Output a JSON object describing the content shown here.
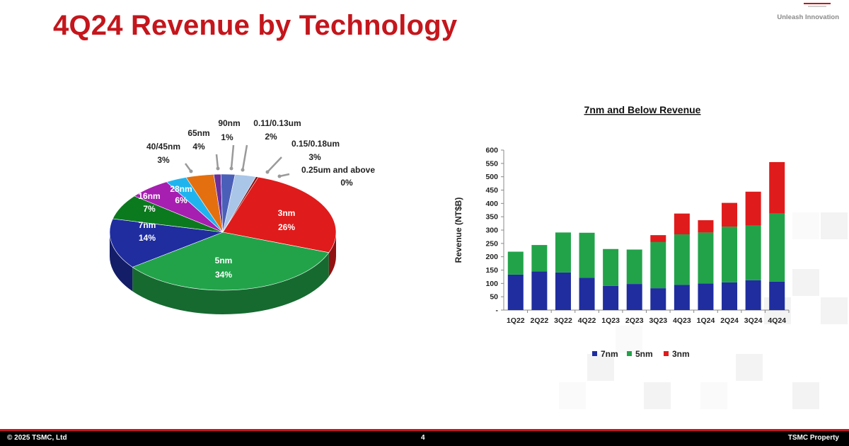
{
  "slide": {
    "title": "4Q24 Revenue by Technology",
    "tagline": "Unleash Innovation",
    "footer_left": "© 2025 TSMC, Ltd",
    "page_number": "4",
    "footer_right": "TSMC Property"
  },
  "colors": {
    "brand_red": "#c4161c",
    "c_7nm": "#1f2d9f",
    "c_5nm": "#22a34a",
    "c_3nm": "#e01b1b"
  },
  "chart_data": [
    {
      "type": "pie",
      "title": "",
      "slices": [
        {
          "label": "3nm",
          "value": 26,
          "value_label": "26%",
          "color": "#e01b1b"
        },
        {
          "label": "5nm",
          "value": 34,
          "value_label": "34%",
          "color": "#22a34a"
        },
        {
          "label": "7nm",
          "value": 14,
          "value_label": "14%",
          "color": "#1f2d9f"
        },
        {
          "label": "16nm",
          "value": 7,
          "value_label": "7%",
          "color": "#0b7a1e"
        },
        {
          "label": "28nm",
          "value": 6,
          "value_label": "6%",
          "color": "#a61fb0"
        },
        {
          "label": "40/45nm",
          "value": 3,
          "value_label": "3%",
          "color": "#20b4ef"
        },
        {
          "label": "65nm",
          "value": 4,
          "value_label": "4%",
          "color": "#e46f0e"
        },
        {
          "label": "90nm",
          "value": 1,
          "value_label": "1%",
          "color": "#6a2f9a"
        },
        {
          "label": "0.11/0.13um",
          "value": 2,
          "value_label": "2%",
          "color": "#4a5fb8"
        },
        {
          "label": "0.15/0.18um",
          "value": 3,
          "value_label": "3%",
          "color": "#a9c6e8"
        },
        {
          "label": "0.25um and above",
          "value": 0,
          "value_label": "0%",
          "color": "#8c1010"
        }
      ]
    },
    {
      "type": "bar",
      "stacked": true,
      "title": "7nm and Below Revenue",
      "ylabel": "Revenue (NT$B)",
      "xlabel": "",
      "ylim": [
        0,
        600
      ],
      "yticks": [
        "-",
        "50",
        "100",
        "150",
        "200",
        "250",
        "300",
        "350",
        "400",
        "450",
        "500",
        "550",
        "600"
      ],
      "categories": [
        "1Q22",
        "2Q22",
        "3Q22",
        "4Q22",
        "1Q23",
        "2Q23",
        "3Q23",
        "4Q23",
        "1Q24",
        "2Q24",
        "3Q24",
        "4Q24"
      ],
      "series": [
        {
          "name": "7nm",
          "color": "#1f2d9f",
          "values": [
            133,
            145,
            141,
            121,
            91,
            98,
            82,
            95,
            100,
            104,
            112,
            107
          ]
        },
        {
          "name": "5nm",
          "color": "#22a34a",
          "values": [
            86,
            99,
            150,
            169,
            138,
            129,
            173,
            189,
            191,
            209,
            205,
            255
          ]
        },
        {
          "name": "3nm",
          "color": "#e01b1b",
          "values": [
            0,
            0,
            0,
            0,
            0,
            0,
            26,
            78,
            46,
            89,
            127,
            193
          ]
        }
      ],
      "legend": "bottom"
    }
  ]
}
